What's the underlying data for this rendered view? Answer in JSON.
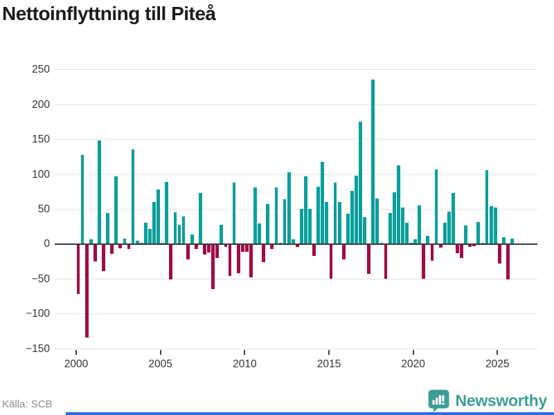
{
  "header": {
    "title": "Nettoinflyttning till Piteå"
  },
  "chart_data": {
    "type": "bar",
    "title": "Nettoinflyttning till Piteå",
    "frequency": "quarterly",
    "start": "2000-Q1",
    "end": "2025-Q4",
    "values": [
      -70,
      127,
      -133,
      6,
      -24,
      148,
      -37,
      44,
      -13,
      97,
      -5,
      7,
      -6,
      135,
      4,
      1,
      30,
      21,
      60,
      78,
      1,
      89,
      -49,
      45,
      27,
      39,
      -21,
      13,
      -6,
      73,
      -14,
      -11,
      -63,
      -19,
      27,
      -3,
      -44,
      88,
      -40,
      -10,
      -10,
      -46,
      81,
      29,
      -25,
      57,
      -6,
      81,
      1,
      64,
      102,
      6,
      -3,
      50,
      97,
      50,
      -16,
      82,
      117,
      60,
      -48,
      88,
      60,
      -21,
      43,
      76,
      98,
      175,
      38,
      -41,
      235,
      65,
      1,
      -48,
      44,
      74,
      112,
      52,
      30,
      1,
      6,
      55,
      -48,
      11,
      -23,
      106,
      -4,
      30,
      46,
      73,
      -12,
      -19,
      26,
      -3,
      -2,
      31,
      1,
      105,
      54,
      52,
      -26,
      9,
      -49,
      7
    ],
    "x_tick_years": [
      2000,
      2005,
      2010,
      2015,
      2020,
      2025
    ],
    "y_ticks": [
      {
        "value": 250,
        "label": "250"
      },
      {
        "value": 200,
        "label": "200"
      },
      {
        "value": 150,
        "label": "150"
      },
      {
        "value": 100,
        "label": "100"
      },
      {
        "value": 50,
        "label": "50"
      },
      {
        "value": 0,
        "label": "0"
      },
      {
        "value": -50,
        "label": "−50"
      },
      {
        "value": -100,
        "label": "−100"
      },
      {
        "value": -150,
        "label": "−150"
      }
    ],
    "ylim": [
      -150,
      250
    ],
    "grid": true,
    "legend": "none",
    "colors": {
      "positive": "#0a9f9b",
      "negative": "#a00c48"
    }
  },
  "footer": {
    "source": "Källa: SCB",
    "brand": "Newsworthy",
    "brand_color": "#3d9e98",
    "accent_bar_color": "#2d6be0"
  }
}
